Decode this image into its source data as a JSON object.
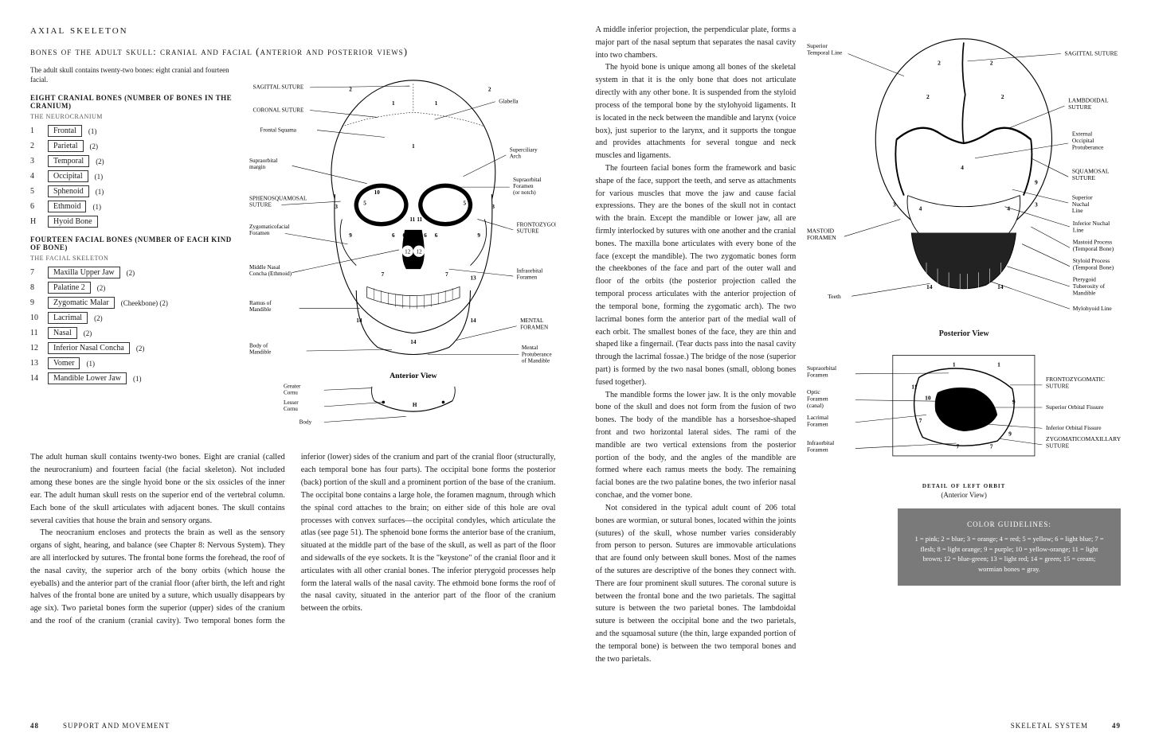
{
  "left": {
    "title_main": "axial skeleton",
    "title_sub": "bones of the adult skull: cranial and facial (anterior and posterior views)",
    "intro_note": "The adult skull contains twenty-two bones: eight cranial and fourteen facial.",
    "cranial_head": "eight cranial bones (number of bones in the cranium)",
    "cranial_sub": "the neurocranium",
    "cranial_bones": [
      {
        "n": "1",
        "name": "Frontal",
        "c": "(1)"
      },
      {
        "n": "2",
        "name": "Parietal",
        "c": "(2)"
      },
      {
        "n": "3",
        "name": "Temporal",
        "c": "(2)"
      },
      {
        "n": "4",
        "name": "Occipital",
        "c": "(1)"
      },
      {
        "n": "5",
        "name": "Sphenoid",
        "c": "(1)"
      },
      {
        "n": "6",
        "name": "Ethmoid",
        "c": "(1)"
      },
      {
        "n": "H",
        "name": "Hyoid Bone",
        "c": ""
      }
    ],
    "facial_head": "fourteen facial bones (number of each kind of bone)",
    "facial_sub": "the facial skeleton",
    "facial_bones": [
      {
        "n": "7",
        "name": "Maxilla Upper Jaw",
        "c": "(2)"
      },
      {
        "n": "8",
        "name": "Palatine 2",
        "c": "(2)"
      },
      {
        "n": "9",
        "name": "Zygomatic Malar",
        "c": "(Cheekbone) (2)"
      },
      {
        "n": "10",
        "name": "Lacrimal",
        "c": "(2)"
      },
      {
        "n": "11",
        "name": "Nasal",
        "c": "(2)"
      },
      {
        "n": "12",
        "name": "Inferior Nasal Concha",
        "c": "(2)"
      },
      {
        "n": "13",
        "name": "Vomer",
        "c": "(1)"
      },
      {
        "n": "14",
        "name": "Mandible Lower Jaw",
        "c": "(1)"
      }
    ],
    "anterior_caption": "Anterior View",
    "anterior_labels": {
      "sagittal": "SAGITTAL SUTURE",
      "coronal": "CORONAL SUTURE",
      "frontal_squama": "Frontal Squama",
      "supraorbital_margin": "Supraorbital margin",
      "sphenosquamosal": "SPHENOSQUAMOSAL SUTURE",
      "zygomaticofacial": "Zygomaticofacial Foramen",
      "middle_nasal": "Middle Nasal Concha (Ethmoid)",
      "ramus": "Ramus of Mandible",
      "body_mandible": "Body of Mandible",
      "glabella": "Glabella",
      "superciliary": "Superciliary Arch",
      "supraorbital_foramen": "Supraorbital Foramen (or notch)",
      "frontozygomatic": "FRONTOZYGOMATIC SUTURE",
      "infraorbital": "Infraorbital Foramen",
      "mental_foramen": "MENTAL FORAMEN",
      "mental_protuberance": "Mental Protuberance of Mandible",
      "greater_cornu": "Greater Cornu",
      "lesser_cornu": "Lesser Cornu",
      "body_hyoid": "Body",
      "hyoid_h": "H"
    },
    "anterior_numbers": [
      "1",
      "2",
      "3",
      "4",
      "5",
      "6",
      "7",
      "8",
      "9",
      "10",
      "11",
      "12",
      "13",
      "14"
    ],
    "bodytext_p1": "The adult human skull contains twenty-two bones. Eight are cranial (called the neurocranium) and fourteen facial (the facial skeleton). Not included among these bones are the single hyoid bone or the six ossicles of the inner ear. The adult human skull rests on the superior end of the vertebral column. Each bone of the skull articulates with adjacent bones. The skull contains several cavities that house the brain and sensory organs.",
    "bodytext_p2": "The neocranium encloses and protects the brain as well as the sensory organs of sight, hearing, and balance (see Chapter 8: Nervous System). They are all interlocked by sutures. The frontal bone forms the forehead, the roof of the nasal cavity, the superior arch of the bony orbits (which house the eyeballs) and the anterior part of the cranial floor (after birth, the left and right halves of the frontal bone are united by a suture, which usually disappears by age six). Two parietal bones form the superior (upper) sides of the cranium and the roof of the cranium (cranial cavity). Two temporal bones form the inferior (lower) sides of the cranium and part of the cranial floor (structurally, each temporal bone has four parts). The occipital bone forms the posterior (back) portion of the skull and a prominent portion of the base of the cranium. The occipital bone contains a large hole, the foramen magnum, through which the spinal cord attaches to the brain; on either side of this hole are oval processes with convex surfaces—the occipital condyles, which articulate the atlas (see page 51). The sphenoid bone forms the anterior base of the cranium, situated at the middle part of the base of the skull, as well as part of the floor and sidewalls of the eye sockets. It is the \"keystone\" of the cranial floor and it articulates with all other cranial bones. The inferior pterygoid processes help form the lateral walls of the nasal cavity. The ethmoid bone forms the roof of the nasal cavity, situated in the anterior part of the floor of the cranium between the orbits.",
    "footer_page": "48",
    "footer_text": "support and movement"
  },
  "right": {
    "bodytext_p1": "A middle inferior projection, the perpendicular plate, forms a major part of the nasal septum that separates the nasal cavity into two chambers.",
    "bodytext_p2": "The hyoid bone is unique among all bones of the skeletal system in that it is the only bone that does not articulate directly with any other bone. It is suspended from the styloid process of the temporal bone by the stylohyoid ligaments. It is located in the neck between the mandible and larynx (voice box), just superior to the larynx, and it supports the tongue and provides attachments for several tongue and neck muscles and ligaments.",
    "bodytext_p3": "The fourteen facial bones form the framework and basic shape of the face, support the teeth, and serve as attachments for various muscles that move the jaw and cause facial expressions. They are the bones of the skull not in contact with the brain. Except the mandible or lower jaw, all are firmly interlocked by sutures with one another and the cranial bones. The maxilla bone articulates with every bone of the face (except the mandible). The two zygomatic bones form the cheekbones of the face and part of the outer wall and floor of the orbits (the posterior projection called the temporal process articulates with the anterior projection of the temporal bone, forming the zygomatic arch). The two lacrimal bones form the anterior part of the medial wall of each orbit. The smallest bones of the face, they are thin and shaped like a fingernail. (Tear ducts pass into the nasal cavity through the lacrimal fossae.) The bridge of the nose (superior part) is formed by the two nasal bones (small, oblong bones fused together).",
    "bodytext_p4": "The mandible forms the lower jaw. It is the only movable bone of the skull and does not form from the fusion of two bones. The body of the mandible has a horseshoe-shaped front and two horizontal lateral sides. The rami of the mandible are two vertical extensions from the posterior portion of the body, and the angles of the mandible are formed where each ramus meets the body. The remaining facial bones are the two palatine bones, the two inferior nasal conchae, and the vomer bone.",
    "bodytext_p5": "Not considered in the typical adult count of 206 total bones are wormian, or sutural bones, located within the joints (sutures) of the skull, whose number varies considerably from person to person. Sutures are immovable articulations that are found only between skull bones. Most of the names of the sutures are descriptive of the bones they connect with. There are four prominent skull sutures. The coronal suture is between the frontal bone and the two parietals. The sagittal suture is between the two parietal bones. The lambdoidal suture is between the occipital bone and the two parietals, and the squamosal suture (the thin, large expanded portion of the temporal bone) is between the two temporal bones and the two parietals.",
    "posterior_caption": "Posterior View",
    "posterior_labels": {
      "superior_temporal": "Superior Temporal Line",
      "mastoid_foramen": "MASTOID FORAMEN",
      "teeth": "Teeth",
      "sagittal": "SAGITTAL SUTURE",
      "lambdoidal": "LAMBDOIDAL SUTURE",
      "ext_occipital": "External Occipital Protuberance",
      "squamosal": "SQUAMOSAL SUTURE",
      "sup_nuchal": "Superior Nuchal Line",
      "inf_nuchal": "Inferior Nuchal Line",
      "mastoid_process": "Mastoid Process (Temporal Bone)",
      "styloid": "Styloid Process (Temporal Bone)",
      "pterygoid": "Pterygoid Tuberosity of Mandible",
      "mylohyoid": "Mylohyoid Line"
    },
    "orbit_caption": "detail of left orbit",
    "orbit_subcaption": "(Anterior View)",
    "orbit_labels": {
      "supraorbital": "Supraorbital Foramen",
      "optic": "Optic Foramen (canal)",
      "lacrimal": "Lacrimal Foramen",
      "infraorbital": "Infraorbital Foramen",
      "frontozygomatic": "FRONTOZYGOMATIC SUTURE",
      "sup_orbital_fissure": "Superior Orbital Fissure",
      "inf_orbital_fissure": "Inferior Orbital Fissure",
      "zygomaticomaxillary": "ZYGOMATICOMAXILLARY SUTURE"
    },
    "color_box_title": "COLOR GUIDELINES:",
    "color_box_body": "1 = pink; 2 = blue; 3 = orange; 4 = red; 5 = yellow; 6 = light blue; 7 = flesh; 8 = light orange; 9 = purple; 10 = yellow-orange; 11 = light brown; 12 = blue-green; 13 = light red; 14 = green; 15 = cream; wormian bones = gray.",
    "footer_text": "skeletal system",
    "footer_page": "49"
  },
  "colors": {
    "text": "#1a1a1a",
    "bg": "#ffffff",
    "box_bg": "#7a7a7a",
    "box_fg": "#ffffff",
    "border": "#333333"
  },
  "typography": {
    "body_size_pt": 10.2,
    "title_size_pt": 15,
    "label_size_pt": 8,
    "font_family": "Georgia serif"
  }
}
